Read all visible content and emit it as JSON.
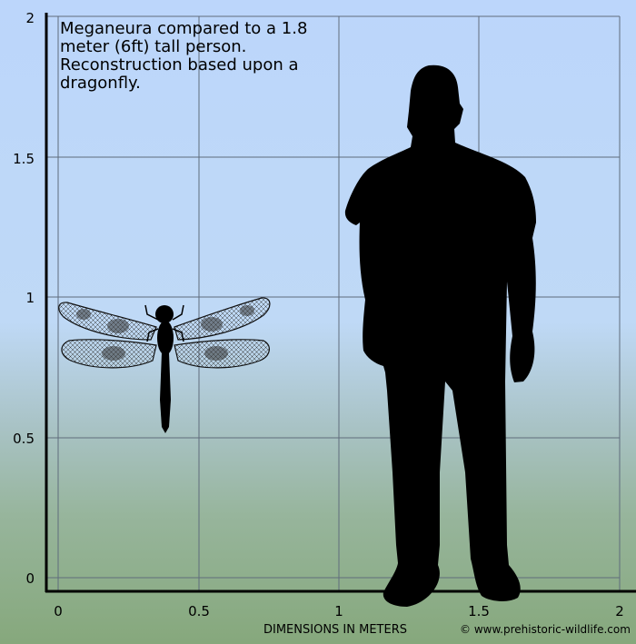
{
  "title": "Meganeura compared to a 1.8 meter (6ft) tall person. Reconstruction based upon a dragonfly.",
  "x_axis_label": "DIMENSIONS IN METERS",
  "credit": "© www.prehistoric-wildlife.com",
  "x_ticks": [
    "0",
    "0.5",
    "1",
    "1.5",
    "2"
  ],
  "y_ticks": [
    "0",
    "0.5",
    "1",
    "1.5",
    "2"
  ],
  "figures": [
    {
      "name": "Meganeura dragonfly",
      "icon": "dragonfly-silhouette"
    },
    {
      "name": "Person",
      "height_m": 1.8,
      "icon": "person-silhouette"
    }
  ],
  "colors": {
    "sky": "#bcd6fb",
    "ground": "#86a87c",
    "grid": "#5f6c7c",
    "silhouette": "#000000"
  }
}
